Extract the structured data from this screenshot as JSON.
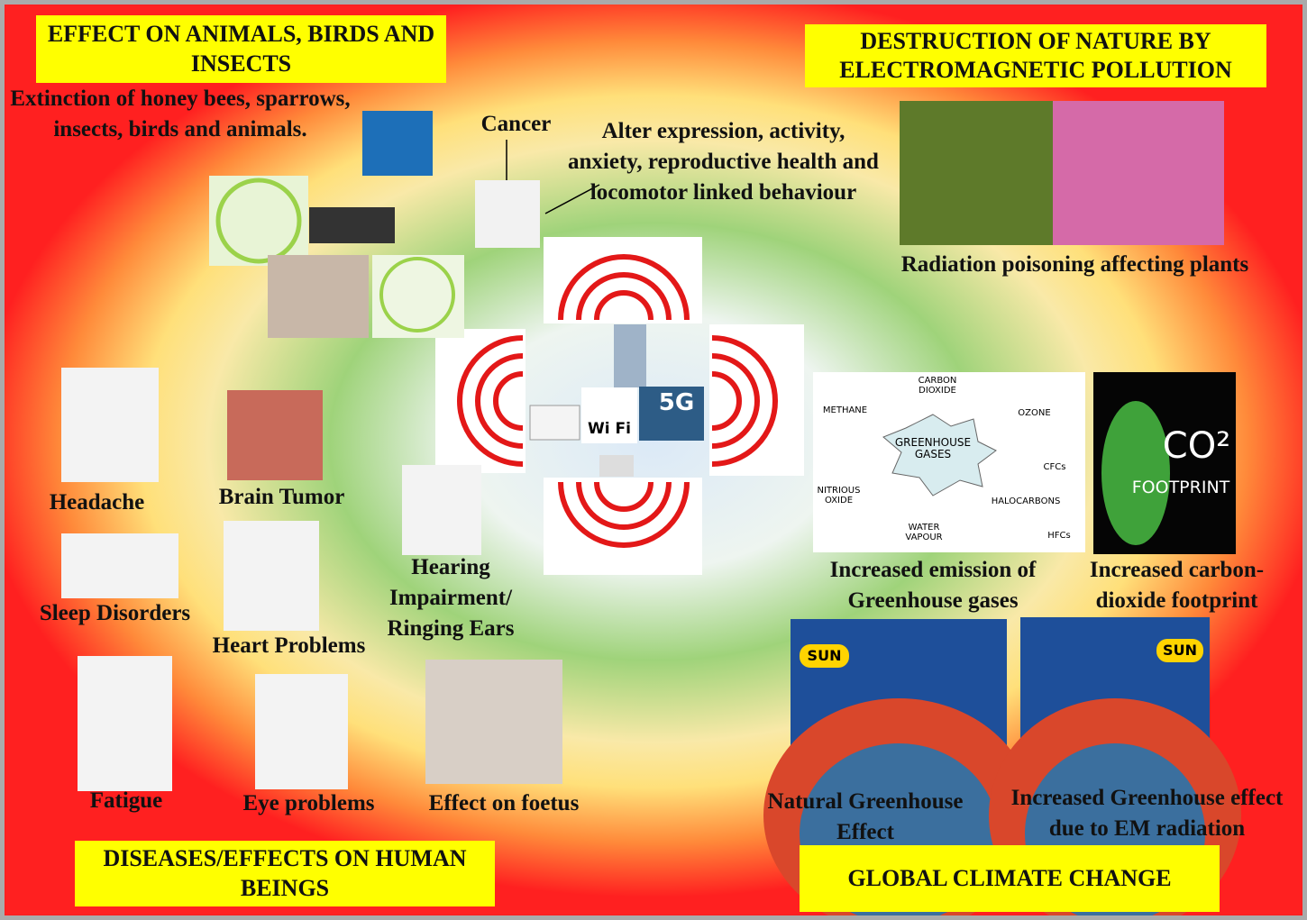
{
  "headings": {
    "animals": "EFFECT ON ANIMALS, BIRDS AND INSECTS",
    "nature": "DESTRUCTION OF NATURE BY ELECTROMAGNETIC POLLUTION",
    "humans": "DISEASES/EFFECTS ON HUMAN BEINGS",
    "climate": "GLOBAL CLIMATE CHANGE"
  },
  "labels": {
    "extinction": "Extinction of honey bees, sparrows, insects, birds and animals.",
    "cancer": "Cancer",
    "behaviour": "Alter expression, activity, anxiety, reproductive health and locomotor linked behaviour",
    "plants": "Radiation poisoning affecting plants",
    "headache": "Headache",
    "brain_tumor": "Brain Tumor",
    "hearing": "Hearing Impairment/ Ringing Ears",
    "sleep": "Sleep Disorders",
    "heart": "Heart Problems",
    "fatigue": "Fatigue",
    "eye": "Eye problems",
    "foetus": "Effect on foetus",
    "greenhouse_gases": "Increased emission of Greenhouse gases",
    "carbon_footprint": "Increased carbon-dioxide footprint",
    "natural_greenhouse": "Natural Greenhouse Effect",
    "increased_greenhouse": "Increased Greenhouse effect due to EM radiation"
  },
  "image_texts": {
    "carbon_dioxide": "CARBON DIOXIDE",
    "methane": "METHANE",
    "greenhouse": "GREENHOUSE GASES",
    "ozone": "OZONE",
    "cfcs": "CFCs",
    "nitrous": "NITRIOUS OXIDE",
    "halocarbons": "HALOCARBONS",
    "water": "WATER VAPOUR",
    "hfcs": "HFCs",
    "co2": "CO²",
    "footprint": "FOOTPRINT",
    "five_g": "5G",
    "wifi": "Wi Fi",
    "sun_left": "SUN",
    "sun_right": "SUN"
  }
}
